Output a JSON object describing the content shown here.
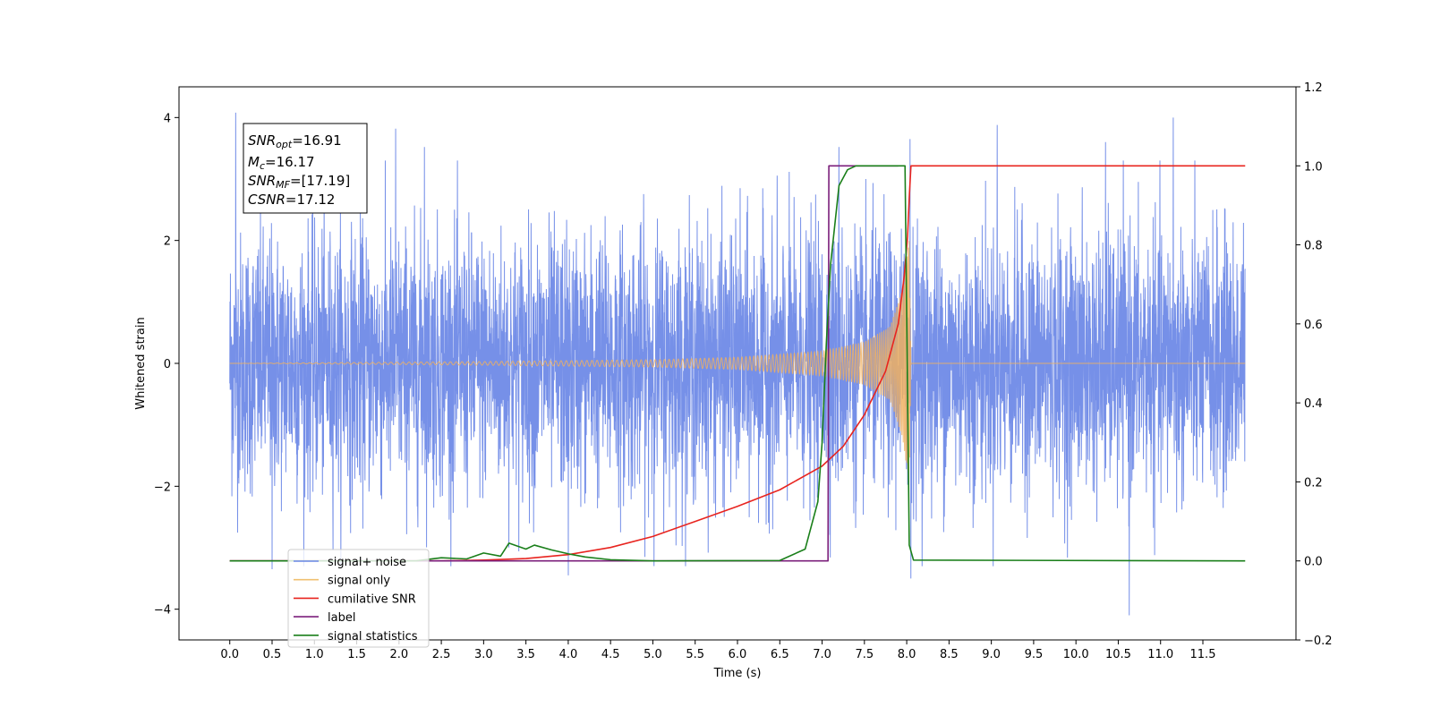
{
  "chart_data": {
    "type": "line",
    "xlabel": "Time (s)",
    "ylabel_left": "Whitened strain",
    "ylabel_right": "",
    "xlim": [
      -0.6,
      12.6
    ],
    "ylim_left": [
      -4.5,
      4.5
    ],
    "ylim_right": [
      -0.2,
      1.2
    ],
    "x_ticks": [
      "0.0",
      "0.5",
      "1.0",
      "1.5",
      "2.0",
      "2.5",
      "3.0",
      "3.5",
      "4.0",
      "4.5",
      "5.0",
      "5.5",
      "6.0",
      "6.5",
      "7.0",
      "7.5",
      "8.0",
      "8.5",
      "9.0",
      "9.5",
      "10.0",
      "10.5",
      "11.0",
      "11.5"
    ],
    "y_ticks_left": [
      "−4",
      "−2",
      "0",
      "2",
      "4"
    ],
    "y_ticks_right": [
      "−0.2",
      "0.0",
      "0.2",
      "0.4",
      "0.6",
      "0.8",
      "1.0",
      "1.2"
    ],
    "grid": false,
    "legend_position": "lower-left",
    "info_box": {
      "snr_opt": {
        "main": "SNR",
        "sub": "opt",
        "value": "=16.91"
      },
      "mc": {
        "main": "M",
        "sub": "c",
        "value": "=16.17"
      },
      "snr_mf": {
        "main": "SNR",
        "sub": "MF",
        "value": "=[17.19]"
      },
      "csnr": {
        "main": "CSNR",
        "sub": "",
        "value": "=17.12"
      }
    },
    "series": [
      {
        "name": "signal+ noise",
        "axis": "left",
        "color": "#6a87e6",
        "description": "whitened noise plus signal, roughly standard-normal amplitude from 0 to 12 s",
        "x_range": [
          0.0,
          12.0
        ],
        "std": 1.0,
        "notable_peaks": [
          [
            0.07,
            4.08
          ],
          [
            1.96,
            3.82
          ],
          [
            2.3,
            3.52
          ],
          [
            7.2,
            3.52
          ],
          [
            8.04,
            3.65
          ],
          [
            9.07,
            3.88
          ],
          [
            10.35,
            3.6
          ],
          [
            11.15,
            4.0
          ],
          [
            10.63,
            -4.1
          ],
          [
            8.05,
            -3.5
          ],
          [
            4.0,
            -3.45
          ],
          [
            0.5,
            -3.35
          ]
        ]
      },
      {
        "name": "signal only",
        "axis": "left",
        "color": "#f0b060",
        "description": "chirp waveform growing in amplitude and frequency until merger near 8.05 s, zero afterwards",
        "x_range": [
          0.0,
          12.0
        ],
        "merger_time": 8.05,
        "envelope": [
          [
            0.0,
            0.0
          ],
          [
            3.0,
            0.03
          ],
          [
            5.0,
            0.06
          ],
          [
            6.0,
            0.1
          ],
          [
            7.0,
            0.2
          ],
          [
            7.5,
            0.35
          ],
          [
            7.8,
            0.6
          ],
          [
            7.95,
            1.2
          ],
          [
            8.03,
            2.0
          ],
          [
            8.05,
            0.0
          ]
        ]
      },
      {
        "name": "cumilative SNR",
        "axis": "right",
        "color": "#e8241f",
        "x": [
          0.0,
          2.5,
          3.0,
          3.5,
          4.0,
          4.5,
          5.0,
          5.5,
          6.0,
          6.5,
          7.0,
          7.25,
          7.5,
          7.75,
          7.9,
          7.97,
          8.01,
          8.03,
          8.05,
          12.0
        ],
        "y": [
          0.0,
          0.0,
          0.002,
          0.006,
          0.016,
          0.034,
          0.062,
          0.1,
          0.138,
          0.18,
          0.24,
          0.29,
          0.37,
          0.48,
          0.6,
          0.72,
          0.82,
          0.92,
          1.0,
          1.0
        ]
      },
      {
        "name": "label",
        "axis": "right",
        "color": "#7b1f7b",
        "x": [
          0.0,
          7.07,
          7.08,
          7.9,
          7.9
        ],
        "y": [
          0.0,
          0.0,
          1.0,
          1.0,
          1.0
        ]
      },
      {
        "name": "signal statistics",
        "axis": "right",
        "color": "#1a7f1a",
        "x": [
          0.0,
          2.2,
          2.5,
          2.8,
          3.0,
          3.2,
          3.3,
          3.5,
          3.6,
          3.8,
          4.0,
          4.2,
          4.5,
          5.0,
          6.5,
          6.8,
          6.95,
          7.0,
          7.05,
          7.1,
          7.2,
          7.3,
          7.4,
          7.5,
          7.98,
          8.03,
          8.08,
          12.0
        ],
        "y": [
          0.0,
          0.0,
          0.008,
          0.005,
          0.02,
          0.012,
          0.045,
          0.03,
          0.04,
          0.028,
          0.018,
          0.01,
          0.003,
          0.0,
          0.001,
          0.03,
          0.15,
          0.3,
          0.55,
          0.75,
          0.95,
          0.99,
          1.0,
          1.0,
          1.0,
          0.04,
          0.002,
          0.0
        ]
      }
    ],
    "legend_entries": [
      {
        "label": "signal+ noise",
        "color": "#6a87e6"
      },
      {
        "label": "signal only",
        "color": "#f0c070"
      },
      {
        "label": "cumilative SNR",
        "color": "#e8241f"
      },
      {
        "label": "label",
        "color": "#7b1f7b"
      },
      {
        "label": "signal statistics",
        "color": "#1a7f1a"
      }
    ]
  }
}
